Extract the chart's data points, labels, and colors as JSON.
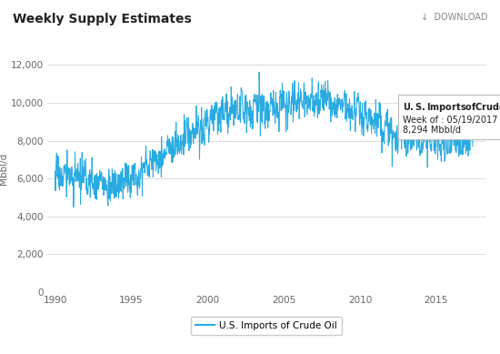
{
  "title": "Weekly Supply Estimates",
  "ylabel": "Mbbl/d",
  "download_text": "↓  DOWNLOAD",
  "line_color": "#29ABE2",
  "line_label": "U.S. Imports of Crude Oil",
  "tooltip_title": "U.S. Imports of Crude Oil",
  "tooltip_week": "Week of : 05/19/2017",
  "tooltip_value": "8,294 Mbbl/d",
  "tooltip_x": 2012.8,
  "tooltip_y": 9200,
  "tooltip_dot_x": 2017.38,
  "tooltip_dot_y": 8294,
  "ylim": [
    0,
    13000
  ],
  "yticks": [
    0,
    2000,
    4000,
    6000,
    8000,
    10000,
    12000
  ],
  "xlim": [
    1989.5,
    2018.2
  ],
  "xticks": [
    1990,
    1995,
    2000,
    2005,
    2010,
    2015
  ],
  "background_color": "#ffffff",
  "grid_color": "#dddddd",
  "seed": 17
}
